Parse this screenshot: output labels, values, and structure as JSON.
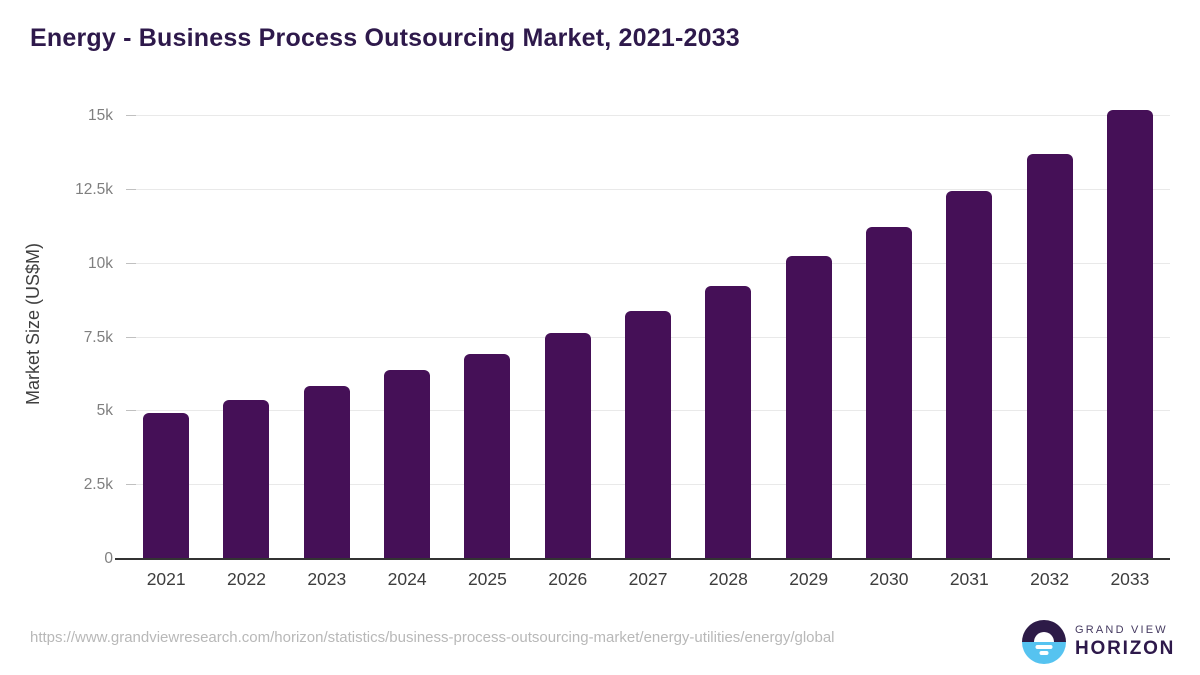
{
  "title": "Energy - Business Process Outsourcing Market, 2021-2033",
  "chart_data": {
    "type": "bar",
    "title": "Energy - Business Process Outsourcing Market, 2021-2033",
    "categories": [
      "2021",
      "2022",
      "2023",
      "2024",
      "2025",
      "2026",
      "2027",
      "2028",
      "2029",
      "2030",
      "2031",
      "2032",
      "2033"
    ],
    "values": [
      4950,
      5400,
      5850,
      6400,
      6950,
      7650,
      8400,
      9250,
      10250,
      11250,
      12450,
      13700,
      15200
    ],
    "series_name": "Market Size",
    "xlabel": "",
    "ylabel": "Market Size (US$M)",
    "ylim": [
      0,
      15915
    ],
    "yticks": [
      {
        "value": 0,
        "label": "0"
      },
      {
        "value": 2500,
        "label": "2.5k"
      },
      {
        "value": 5000,
        "label": "5k"
      },
      {
        "value": 7500,
        "label": "7.5k"
      },
      {
        "value": 10000,
        "label": "10k"
      },
      {
        "value": 12500,
        "label": "12.5k"
      },
      {
        "value": 15000,
        "label": "15k"
      }
    ],
    "grid": true,
    "legend": false,
    "bar_color": "#451057"
  },
  "footer": {
    "source_url": "https://www.grandviewresearch.com/horizon/statistics/business-process-outsourcing-market/energy-utilities/energy/global",
    "logo": {
      "line1": "GRAND VIEW",
      "line2": "HORIZON"
    }
  },
  "colors": {
    "bar": "#451057",
    "title_text": "#2e194b",
    "gridline": "#e9e9e9",
    "axis_line": "#333333",
    "y_tick_text": "#7f7f7f",
    "x_label_text": "#3d3d3d",
    "url_text": "#b8b8b8",
    "logo_dark": "#2d1b47",
    "logo_blue": "#56c3f0"
  }
}
